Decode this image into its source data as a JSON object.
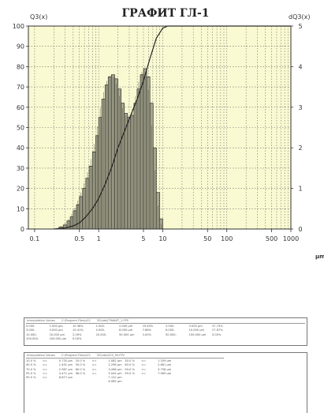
{
  "chart_data": {
    "type": "bar",
    "title": "ГРАФИТ ГЛ-1",
    "left_axis_label": "Q3(x)",
    "right_axis_label": "dQ3(x)",
    "x_unit_label": "µm",
    "x_scale": "log",
    "xlim": [
      0.08,
      1000
    ],
    "ylim_left": [
      0,
      100
    ],
    "ylim_right": [
      0,
      5
    ],
    "left_ticks": [
      "0",
      "10",
      "20",
      "30",
      "40",
      "50",
      "60",
      "70",
      "80",
      "90",
      "100"
    ],
    "right_ticks": [
      "0",
      "1",
      "2",
      "3",
      "4",
      "5"
    ],
    "x_tick_labels": [
      {
        "value": 0.1,
        "label": "0.1"
      },
      {
        "value": 0.5,
        "label": "0.5"
      },
      {
        "value": 1,
        "label": "1"
      },
      {
        "value": 5,
        "label": "5"
      },
      {
        "value": 10,
        "label": "10"
      },
      {
        "value": 50,
        "label": "50"
      },
      {
        "value": 100,
        "label": "100"
      },
      {
        "value": 500,
        "label": "500"
      },
      {
        "value": 1000,
        "label": "1000"
      }
    ],
    "grid": true,
    "histogram": {
      "name": "dQ3(x)",
      "axis": "right",
      "x": [
        0.2,
        0.24,
        0.28,
        0.32,
        0.36,
        0.4,
        0.45,
        0.5,
        0.56,
        0.63,
        0.71,
        0.8,
        0.9,
        1.0,
        1.12,
        1.26,
        1.41,
        1.58,
        1.78,
        2.0,
        2.24,
        2.51,
        2.82,
        3.16,
        3.55,
        3.98,
        4.47,
        5.01,
        5.62,
        6.31,
        7.08,
        7.94,
        8.91,
        10.0
      ],
      "values": [
        0.0,
        0.05,
        0.1,
        0.2,
        0.3,
        0.45,
        0.6,
        0.8,
        1.0,
        1.25,
        1.55,
        1.9,
        2.3,
        2.75,
        3.2,
        3.55,
        3.75,
        3.8,
        3.7,
        3.45,
        3.1,
        2.85,
        2.75,
        2.8,
        3.1,
        3.45,
        3.8,
        3.95,
        3.75,
        3.1,
        2.0,
        0.9,
        0.25,
        0.0
      ]
    },
    "cumulative": {
      "name": "Q3(x)",
      "axis": "left",
      "x": [
        0.2,
        0.3,
        0.4,
        0.5,
        0.63,
        0.8,
        1.0,
        1.26,
        1.58,
        2.0,
        2.51,
        3.16,
        3.98,
        5.01,
        6.31,
        7.94,
        10.0,
        12.0,
        1000
      ],
      "values": [
        0,
        0.5,
        1.5,
        3,
        6,
        10,
        15,
        22,
        30,
        40,
        48,
        56,
        64,
        73,
        84,
        94,
        99,
        100,
        100
      ]
    }
  },
  "table1": {
    "caption": [
      "Interpolation Values",
      "C:\\Program Files\\s22",
      "32\\hdo\\ГРАФИТ_1.FPS"
    ],
    "cells": [
      "0.000-",
      "1.000 µm",
      "10.38%",
      "1.000-",
      "2.000 µm",
      "29.49%",
      "2.000-",
      "3.000 µm",
      "37.73%",
      "",
      "",
      "",
      "3.000-",
      "4.000 µm",
      "10.41%",
      "4.000-",
      "6.000 µm",
      "7.86%",
      "6.000-",
      "10.000 µm",
      "27.87%",
      "",
      "",
      "",
      "10.000-",
      "20.000 µm",
      "2.26%",
      "20.000-",
      "50.000 µm",
      "0.00%",
      "50.000-",
      "100.000 µm",
      "0.00%",
      "",
      "",
      "",
      "100.000-",
      "200.000 µm",
      "0.00%",
      "",
      "",
      "",
      "",
      "",
      "",
      "",
      "",
      ""
    ]
  },
  "table2": {
    "caption": [
      "Interpolation Values",
      "C:\\Program Files\\s22",
      "32\\hdo\\G03_90.FPV"
    ],
    "cells": [
      "10.0 %",
      "<=",
      "0.735 µm",
      "20.0 %",
      "<=",
      "1.082 µm",
      "30.0 %",
      "<=",
      "1.339 µm",
      "",
      "",
      "",
      "40.0 %",
      "<=",
      "1.491 µm",
      "50.0 %",
      "<=",
      "2.296 µm",
      "60.0 %",
      "<=",
      "2.661 µm",
      "",
      "",
      "",
      "70.0 %",
      "<=",
      "2.987 µm",
      "80.0 %",
      "<=",
      "3.266 µm",
      "90.0 %",
      "<=",
      "3.758 µm",
      "",
      "",
      "",
      "95.0 %",
      "<=",
      "4.471 µm",
      "98.0 %",
      "<=",
      "5.044 µm",
      "99.0 %",
      "<=",
      "7.969 µm",
      "",
      "",
      "",
      "99.9 %",
      "<=",
      "6.877 µm",
      "",
      "",
      "7.122 µm",
      "",
      "",
      "",
      "",
      "",
      "",
      "",
      "",
      "",
      "",
      "",
      "8.085 µm",
      "",
      "",
      "",
      "",
      "",
      ""
    ]
  },
  "colors": {
    "plot_bg": "#fafad2",
    "grid": "#6e6e6e",
    "bar_fill": "#a7a78d",
    "bar_edge": "#2e2e2e",
    "line": "#222222"
  }
}
